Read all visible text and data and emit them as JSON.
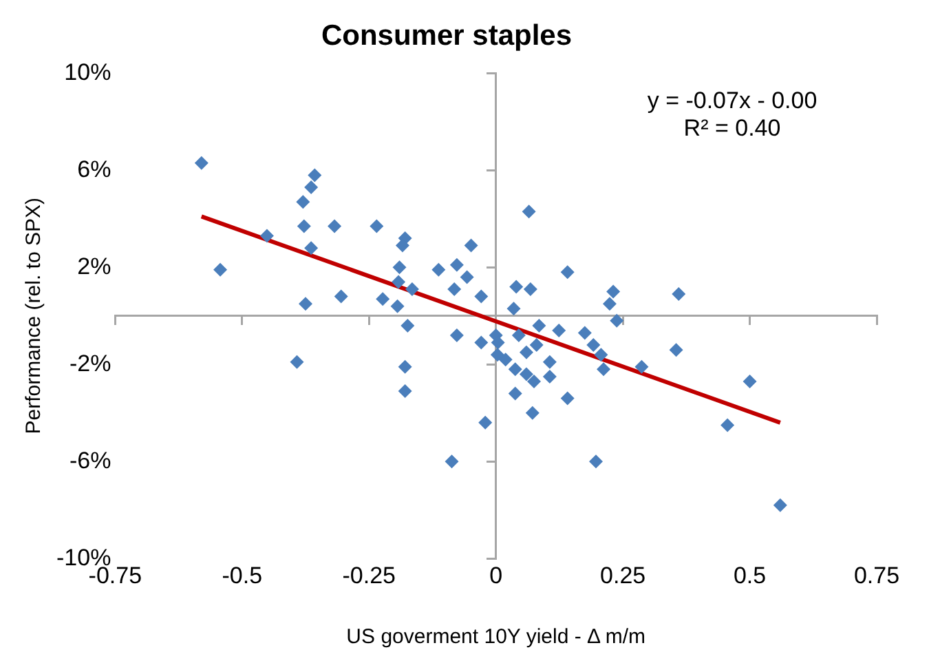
{
  "chart_data": {
    "type": "scatter",
    "title": "Consumer staples",
    "xlabel": "US goverment 10Y yield - Δ m/m",
    "ylabel": "Performance (rel. to SPX)",
    "annotations": [
      "y = -0.07x - 0.00",
      "R² = 0.40"
    ],
    "xlim": [
      -0.75,
      0.75
    ],
    "xticks": [
      -0.75,
      -0.5,
      -0.25,
      0,
      0.25,
      0.5,
      0.75
    ],
    "ylim": [
      -10,
      10
    ],
    "yticks": [
      {
        "value": -10,
        "label": "-10%"
      },
      {
        "value": -6,
        "label": "-6%"
      },
      {
        "value": -2,
        "label": "-2%"
      },
      {
        "value": 2,
        "label": "2%"
      },
      {
        "value": 6,
        "label": "6%"
      },
      {
        "value": 10,
        "label": "10%"
      }
    ],
    "legend": false,
    "marker": "diamond",
    "series": [
      {
        "type": "scatter",
        "color": "#4a7ebb",
        "x": [
          -0.58,
          -0.543,
          -0.357,
          -0.364,
          -0.38,
          -0.378,
          -0.318,
          -0.451,
          -0.364,
          -0.235,
          -0.179,
          -0.184,
          -0.19,
          -0.192,
          -0.165,
          -0.049,
          -0.077,
          -0.113,
          -0.057,
          -0.082,
          -0.029,
          -0.375,
          -0.305,
          -0.223,
          -0.194,
          -0.174,
          -0.077,
          -0.029,
          0,
          -0.392,
          -0.179,
          -0.179,
          -0.021,
          -0.087,
          0.003,
          0.065,
          0.141,
          0.36,
          0.231,
          0.224,
          0.238,
          0.04,
          0.068,
          0.035,
          0.124,
          0.175,
          0.085,
          0.192,
          0.207,
          0.212,
          0.287,
          0.355,
          0.106,
          0.106,
          0.075,
          0.038,
          0.141,
          0.072,
          0.004,
          0.019,
          0.038,
          0.06,
          0.06,
          0.08,
          0.045,
          0.5,
          0.456,
          0.56,
          0.197
        ],
        "values": [
          6.3,
          1.9,
          5.8,
          5.3,
          4.7,
          3.7,
          3.7,
          3.3,
          2.8,
          3.7,
          3.2,
          2.9,
          2.0,
          1.4,
          1.1,
          2.9,
          2.1,
          1.9,
          1.6,
          1.1,
          0.8,
          0.5,
          0.8,
          0.7,
          0.4,
          -0.4,
          -0.8,
          -1.1,
          -0.8,
          -1.9,
          -2.1,
          -3.1,
          -4.4,
          -6.0,
          -1.6,
          4.3,
          1.8,
          0.9,
          1.0,
          0.5,
          -0.2,
          1.2,
          1.1,
          0.3,
          -0.6,
          -0.7,
          -0.4,
          -1.2,
          -1.6,
          -2.2,
          -2.1,
          -1.4,
          -1.9,
          -2.5,
          -2.7,
          -3.2,
          -3.4,
          -4.0,
          -1.1,
          -1.8,
          -2.2,
          -2.4,
          -1.5,
          -1.2,
          -0.8,
          -2.7,
          -4.5,
          -7.8,
          -6.0
        ]
      },
      {
        "type": "line",
        "color": "#c00000",
        "x": [
          -0.58,
          0.56
        ],
        "values": [
          4.1,
          -4.4
        ],
        "marker": "none"
      }
    ]
  }
}
